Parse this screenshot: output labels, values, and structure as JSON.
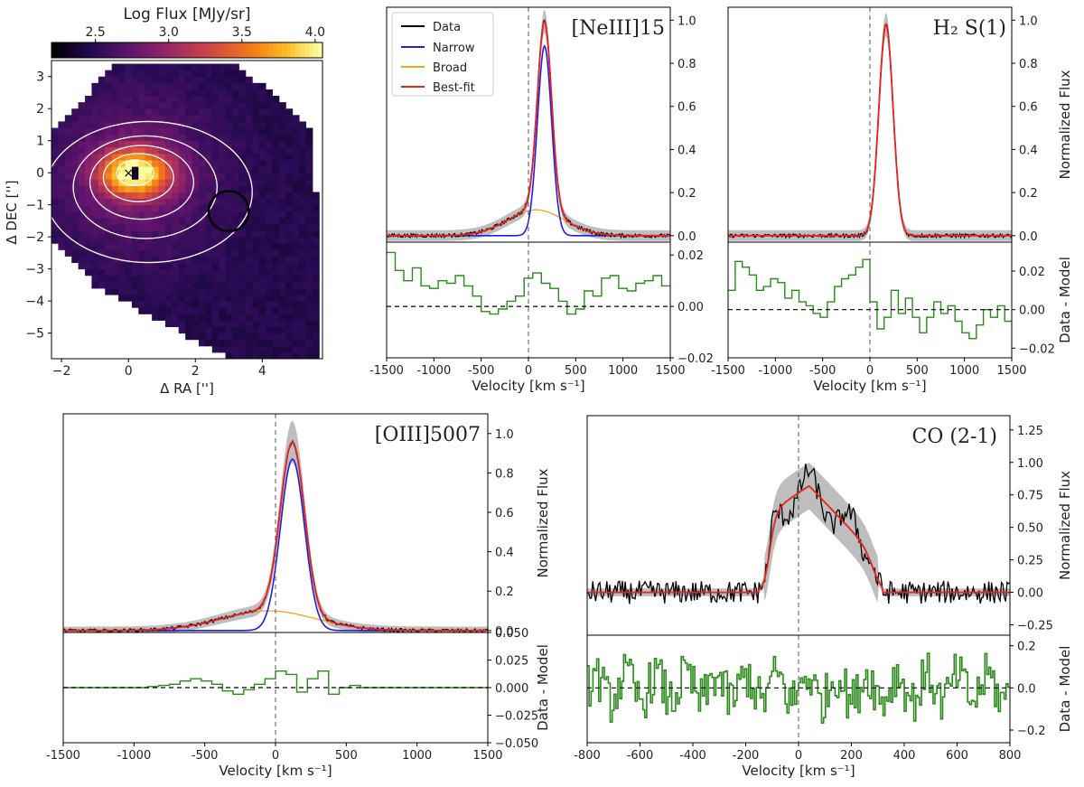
{
  "colors": {
    "data": "#000000",
    "narrow": "#1f1fe6",
    "broad": "#f5a31a",
    "bestfit": "#e8231f",
    "residual": "#2a8a1a",
    "band": "#b3b3b3",
    "contour": "#ffffff",
    "aperture": "#000000"
  },
  "map": {
    "colorbar_label": "Log Flux [MJy/sr]",
    "colorbar_ticks": [
      "2.5",
      "3.0",
      "3.5",
      "4.0"
    ],
    "colorbar_range": [
      2.2,
      4.05
    ],
    "xlabel": "Δ RA ['']",
    "ylabel": "Δ DEC ['']",
    "xticks": [
      "−2",
      "0",
      "2",
      "4"
    ],
    "yticks": [
      "3",
      "2",
      "1",
      "0",
      "−1",
      "−2",
      "−3",
      "−4",
      "−5"
    ],
    "xlim": [
      -2.3,
      5.8
    ],
    "ylim": [
      -5.8,
      3.5
    ],
    "peak": [
      0.2,
      0.0
    ],
    "aperture_center": [
      3.0,
      -1.2
    ],
    "aperture_radius": 0.6,
    "contour_levels": 5,
    "colormap": "inferno"
  },
  "panels": [
    {
      "id": "neiii",
      "title": "[NeIII]15",
      "xlabel": "Velocity [km s⁻¹]",
      "ylabel_top": "",
      "ylabel_bottom": "",
      "xticks": [
        "-1500",
        "-1000",
        "-500",
        "0",
        "500",
        "1000",
        "1500"
      ],
      "yticks_top": [
        "0.0",
        "0.2",
        "0.4",
        "0.6",
        "0.8",
        "1.0"
      ],
      "yticks_bottom": [
        "−0.02",
        "0.00",
        "0.02"
      ],
      "legend": [
        "Data",
        "Narrow",
        "Broad",
        "Best-fit"
      ],
      "xlim": [
        -1500,
        1500
      ],
      "ylim_top": [
        -0.03,
        1.06
      ],
      "ylim_bottom": [
        -0.02,
        0.025
      ],
      "model": {
        "narrow_amp": 0.88,
        "narrow_center": 170,
        "narrow_sigma": 75,
        "broad_amp": 0.12,
        "broad_center": 80,
        "broad_sigma": 300
      },
      "residuals": [
        0.021,
        0.014,
        0.01,
        0.015,
        0.008,
        0.007,
        0.01,
        0.009,
        0.012,
        0.008,
        0.004,
        -0.002,
        -0.003,
        -0.001,
        0.002,
        0.004,
        0.011,
        0.013,
        0.009,
        0.007,
        0.002,
        -0.003,
        -0.001,
        0.006,
        0.004,
        0.011,
        0.012,
        0.007,
        0.006,
        0.009,
        0.01,
        0.012,
        0.008
      ]
    },
    {
      "id": "h2",
      "title": "H₂ S(1)",
      "xlabel": "Velocity [km s⁻¹]",
      "ylabel_top": "Normalized Flux",
      "ylabel_bottom": "Data - Model",
      "xticks": [
        "-1500",
        "-1000",
        "-500",
        "0",
        "500",
        "1000",
        "1500"
      ],
      "yticks_top": [
        "0.0",
        "0.2",
        "0.4",
        "0.6",
        "0.8",
        "1.0"
      ],
      "yticks_bottom": [
        "−0.02",
        "0.00",
        "0.02"
      ],
      "xlim": [
        -1500,
        1500
      ],
      "ylim_top": [
        -0.03,
        1.06
      ],
      "ylim_bottom": [
        -0.025,
        0.035
      ],
      "model": {
        "narrow_amp": 0.98,
        "narrow_center": 170,
        "narrow_sigma": 75,
        "broad_amp": 0,
        "broad_center": 0,
        "broad_sigma": 1
      },
      "residuals": [
        0.01,
        0.025,
        0.022,
        0.018,
        0.01,
        0.012,
        0.016,
        0.014,
        0.006,
        0.01,
        0.004,
        0.002,
        -0.002,
        -0.004,
        0.004,
        0.012,
        0.016,
        0.018,
        0.022,
        0.026,
        0.004,
        -0.01,
        -0.004,
        0.01,
        -0.002,
        0.006,
        -0.004,
        -0.012,
        -0.004,
        0.004,
        -0.002,
        0.002,
        -0.006,
        -0.012,
        -0.015,
        -0.008,
        0.0,
        -0.004,
        0.002,
        -0.006
      ]
    },
    {
      "id": "oiii",
      "title": "[OIII]5007",
      "xlabel": "Velocity [km s⁻¹]",
      "ylabel_top": "Normalized Flux",
      "ylabel_bottom": "Data - Model",
      "xticks": [
        "-1500",
        "-1000",
        "-500",
        "0",
        "500",
        "1000",
        "1500"
      ],
      "yticks_top": [
        "0.0",
        "0.2",
        "0.4",
        "0.6",
        "0.8",
        "1.0"
      ],
      "yticks_bottom": [
        "−0.050",
        "−0.025",
        "0.000",
        "0.025",
        "0.050"
      ],
      "xlim": [
        -1500,
        1500
      ],
      "ylim_top": [
        -0.01,
        1.1
      ],
      "ylim_bottom": [
        -0.05,
        0.05
      ],
      "model": {
        "narrow_amp": 0.87,
        "narrow_center": 120,
        "narrow_sigma": 85,
        "broad_amp": 0.1,
        "broad_center": -50,
        "broad_sigma": 330
      },
      "residuals": [
        0.0,
        0.0,
        0.0,
        0.0,
        0.0,
        0.0,
        0.0,
        0.0,
        0.001,
        0.002,
        0.003,
        0.006,
        0.008,
        0.006,
        0.003,
        -0.003,
        -0.006,
        -0.002,
        0.003,
        0.008,
        0.015,
        0.012,
        -0.004,
        0.008,
        0.015,
        -0.006,
        0.0,
        0.002,
        0.0,
        0.0,
        0.0,
        0.0,
        0.0,
        0.0,
        0.0,
        0.0,
        0.0,
        0.0,
        0.0,
        0.0
      ]
    },
    {
      "id": "co",
      "title": "CO (2-1)",
      "xlabel": "Velocity [km s⁻¹]",
      "ylabel_top": "Normalized Flux",
      "ylabel_bottom": "Data - Model",
      "xticks": [
        "-800",
        "-600",
        "-400",
        "-200",
        "0",
        "200",
        "400",
        "600",
        "800"
      ],
      "yticks_top": [
        "−0.25",
        "0.00",
        "0.25",
        "0.50",
        "0.75",
        "1.00",
        "1.25"
      ],
      "yticks_bottom": [
        "−0.2",
        "0.0",
        "0.2"
      ],
      "xlim": [
        -800,
        800
      ],
      "ylim_top": [
        -0.33,
        1.36
      ],
      "ylim_bottom": [
        -0.26,
        0.25
      ],
      "model": {
        "plateau_start": -110,
        "plateau_end": 290,
        "peak_velocity": 40,
        "peak_amp": 0.82
      },
      "noise": 0.09,
      "resid_noise": 0.11
    }
  ]
}
